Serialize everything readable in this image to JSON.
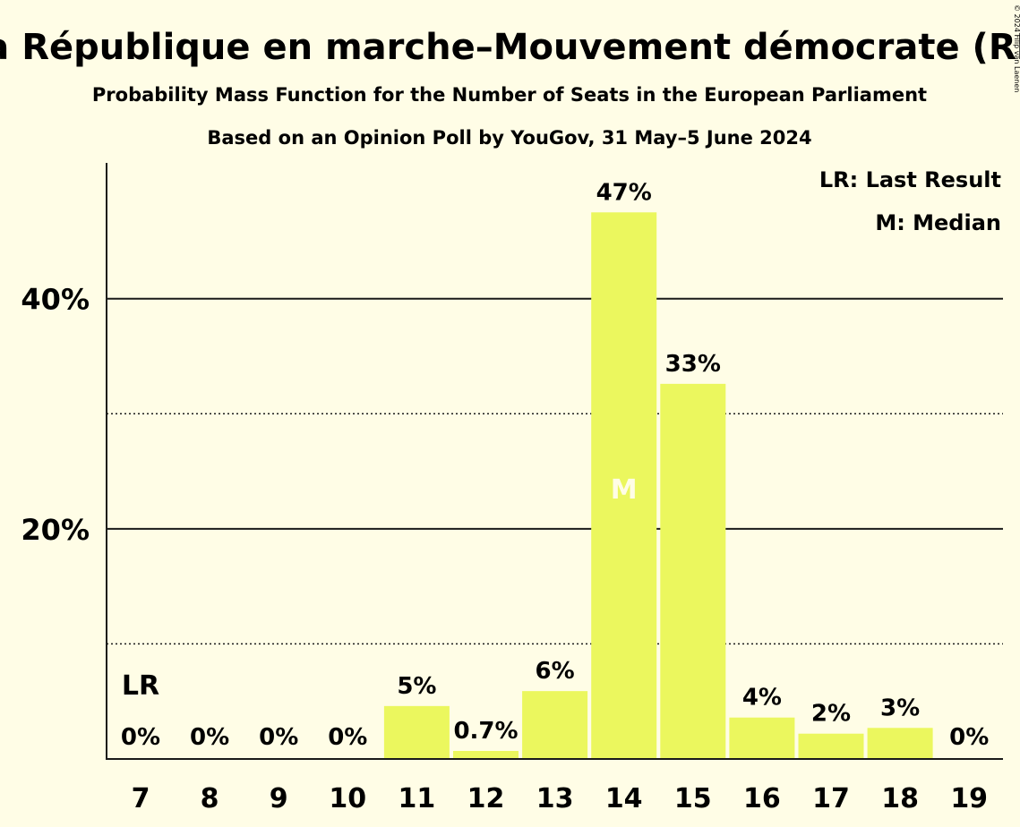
{
  "header": {
    "title": "La République en marche–Mouvement démocrate (RE)",
    "subtitle": "Probability Mass Function for the Number of Seats in the European Parliament",
    "source": "Based on an Opinion Poll by YouGov, 31 May–5 June 2024",
    "copyright": "© 2024 Filip van Laenen"
  },
  "legend": {
    "last_result": "LR: Last Result",
    "median": "M: Median"
  },
  "markers": {
    "last_result": "LR",
    "median": "M"
  },
  "chart_data": {
    "type": "bar",
    "categories": [
      "7",
      "8",
      "9",
      "10",
      "11",
      "12",
      "13",
      "14",
      "15",
      "16",
      "17",
      "18",
      "19"
    ],
    "values": [
      0,
      0,
      0,
      0,
      4.6,
      0.7,
      5.9,
      47.5,
      32.6,
      3.6,
      2.2,
      2.7,
      0
    ],
    "data_labels": [
      "0%",
      "0%",
      "0%",
      "0%",
      "5%",
      "0.7%",
      "6%",
      "47%",
      "33%",
      "4%",
      "2%",
      "3%",
      "0%"
    ],
    "y_ticks": [
      {
        "value": 20,
        "label": "20%"
      },
      {
        "value": 40,
        "label": "40%"
      }
    ],
    "y_minor_gridlines": [
      10,
      30
    ],
    "ylim": [
      0,
      51.8
    ],
    "last_result_category": "7",
    "median_category": "14",
    "bar_color": "#ebf75e",
    "background_color": "#fffde6",
    "legend_position": "top-right"
  }
}
